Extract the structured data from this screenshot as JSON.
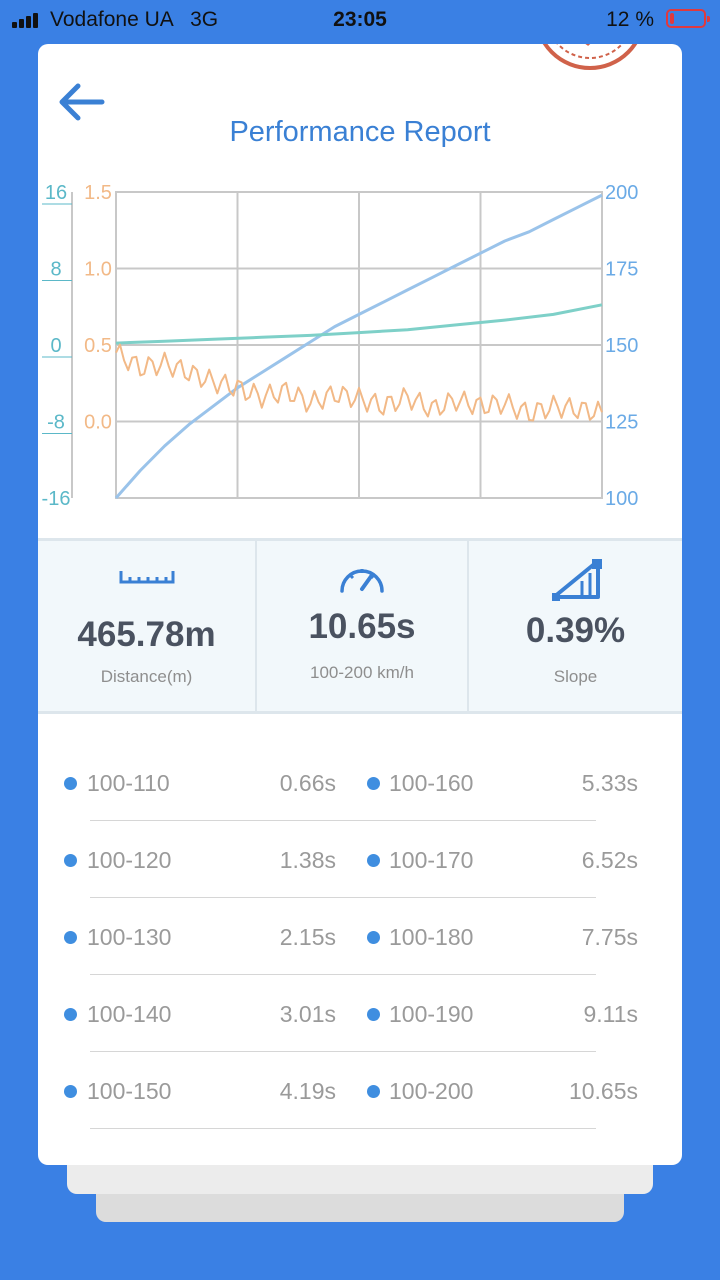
{
  "status_bar": {
    "carrier": "Vodafone UA   3G",
    "time": "23:05",
    "battery": "12 %",
    "battery_level": 0.12
  },
  "header": {
    "title": "Performance Report",
    "back_icon": "arrow-left-icon"
  },
  "colors": {
    "background": "#3a80e4",
    "speed_line": "#9ac3ea",
    "accel_line": "#f2b987",
    "slope_line": "#7ed0c8",
    "title": "#3a80d4"
  },
  "chart_data": {
    "type": "line",
    "grid": true,
    "left_axis_1": {
      "ticks": [
        "16",
        "8",
        "0",
        "-8",
        "-16"
      ],
      "range": [
        -16,
        16
      ]
    },
    "left_axis_2": {
      "ticks": [
        "1.5",
        "1.0",
        "0.5",
        "0.0"
      ],
      "range": [
        -0.5,
        1.5
      ]
    },
    "right_axis": {
      "ticks": [
        "200",
        "175",
        "150",
        "125",
        "100"
      ],
      "range": [
        100,
        200
      ]
    },
    "series": [
      {
        "axis": "right",
        "x": [
          0,
          5,
          10,
          15,
          20,
          25,
          30,
          35,
          40,
          45,
          50,
          55,
          60,
          65,
          70,
          75,
          80,
          85,
          90,
          95,
          100
        ],
        "values": [
          100,
          109,
          117,
          124,
          130,
          136,
          141,
          146,
          151,
          156,
          160,
          164,
          168,
          172,
          176,
          180,
          184,
          187,
          191,
          195,
          199
        ]
      },
      {
        "axis": "left_1",
        "x": [
          0,
          10,
          20,
          30,
          40,
          50,
          60,
          70,
          80,
          90,
          100
        ],
        "values": [
          0.2,
          0.4,
          0.6,
          0.8,
          1.0,
          1.3,
          1.6,
          2.1,
          2.6,
          3.2,
          4.2
        ]
      },
      {
        "axis": "left_2",
        "x": [
          0,
          5,
          10,
          15,
          20,
          25,
          30,
          35,
          40,
          45,
          50,
          55,
          60,
          65,
          70,
          75,
          80,
          85,
          90,
          95,
          100
        ],
        "values": [
          0.45,
          0.35,
          0.38,
          0.32,
          0.26,
          0.22,
          0.16,
          0.2,
          0.12,
          0.18,
          0.15,
          0.1,
          0.16,
          0.08,
          0.14,
          0.1,
          0.12,
          0.05,
          0.1,
          0.08,
          0.06
        ]
      }
    ]
  },
  "stats": [
    {
      "icon": "ruler-icon",
      "value": "465.78m",
      "label": "Distance(m)"
    },
    {
      "icon": "speedometer-icon",
      "value": "10.65s",
      "label": "100-200 km/h"
    },
    {
      "icon": "slope-icon",
      "value": "0.39%",
      "label": "Slope"
    }
  ],
  "splits": {
    "left": [
      {
        "range": "100-110",
        "time": "0.66s"
      },
      {
        "range": "100-120",
        "time": "1.38s"
      },
      {
        "range": "100-130",
        "time": "2.15s"
      },
      {
        "range": "100-140",
        "time": "3.01s"
      },
      {
        "range": "100-150",
        "time": "4.19s"
      }
    ],
    "right": [
      {
        "range": "100-160",
        "time": "5.33s"
      },
      {
        "range": "100-170",
        "time": "6.52s"
      },
      {
        "range": "100-180",
        "time": "7.75s"
      },
      {
        "range": "100-190",
        "time": "9.11s"
      },
      {
        "range": "100-200",
        "time": "10.65s"
      }
    ]
  }
}
